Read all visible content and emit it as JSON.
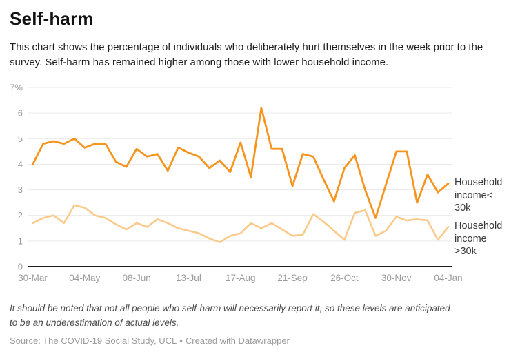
{
  "header": {
    "title": "Self-harm",
    "description": "This chart shows the percentage of individuals who deliberately hurt themselves in the week prior to the survey. Self-harm has remained higher among those with lower household income."
  },
  "chart_data": {
    "type": "line",
    "title": "Self-harm",
    "unit": "%",
    "grid": true,
    "ylim": [
      0,
      7
    ],
    "y_tick_labels": [
      "7%",
      "6",
      "5",
      "4",
      "3",
      "2",
      "1",
      "0"
    ],
    "x_tick_labels": [
      "30-Mar",
      "04-May",
      "08-Jun",
      "13-Jul",
      "17-Aug",
      "21-Sep",
      "26-Oct",
      "30-Nov",
      "04-Jan"
    ],
    "x_tick_every": 5,
    "axis_color": "#9b9b9b",
    "gridline_color": "#e9e9e9",
    "baseline_color": "#1d1d1d",
    "series": [
      {
        "name": "Household income< 30k",
        "label_lines": [
          "Household",
          "income<",
          "30k"
        ],
        "color": "#F7941E",
        "values": [
          4.0,
          4.8,
          4.9,
          4.8,
          5.0,
          4.65,
          4.8,
          4.8,
          4.1,
          3.9,
          4.6,
          4.3,
          4.4,
          3.75,
          4.65,
          4.45,
          4.3,
          3.85,
          4.15,
          3.7,
          4.85,
          3.5,
          6.2,
          4.6,
          4.6,
          3.15,
          4.4,
          4.3,
          3.4,
          2.55,
          3.85,
          4.35,
          3.0,
          1.9,
          3.2,
          4.5,
          4.5,
          2.5,
          3.6,
          2.9,
          3.25
        ]
      },
      {
        "name": "Household income >30k",
        "label_lines": [
          "Household",
          "income",
          ">30k"
        ],
        "color": "#FBC98A",
        "values": [
          1.7,
          1.9,
          2.0,
          1.7,
          2.4,
          2.3,
          2.0,
          1.9,
          1.65,
          1.45,
          1.7,
          1.55,
          1.85,
          1.7,
          1.5,
          1.4,
          1.3,
          1.1,
          0.95,
          1.2,
          1.3,
          1.7,
          1.5,
          1.7,
          1.45,
          1.2,
          1.25,
          2.05,
          1.75,
          1.4,
          1.05,
          2.1,
          2.2,
          1.2,
          1.4,
          1.95,
          1.8,
          1.85,
          1.8,
          1.05,
          1.55
        ]
      }
    ]
  },
  "footer": {
    "note": "It should be noted that not all people who self-harm will necessarily report it, so these levels are anticipated to be an underestimation of actual levels.",
    "source": "Source: The COVID-19 Social Study, UCL",
    "separator": "•",
    "attribution": "Created with Datawrapper"
  }
}
